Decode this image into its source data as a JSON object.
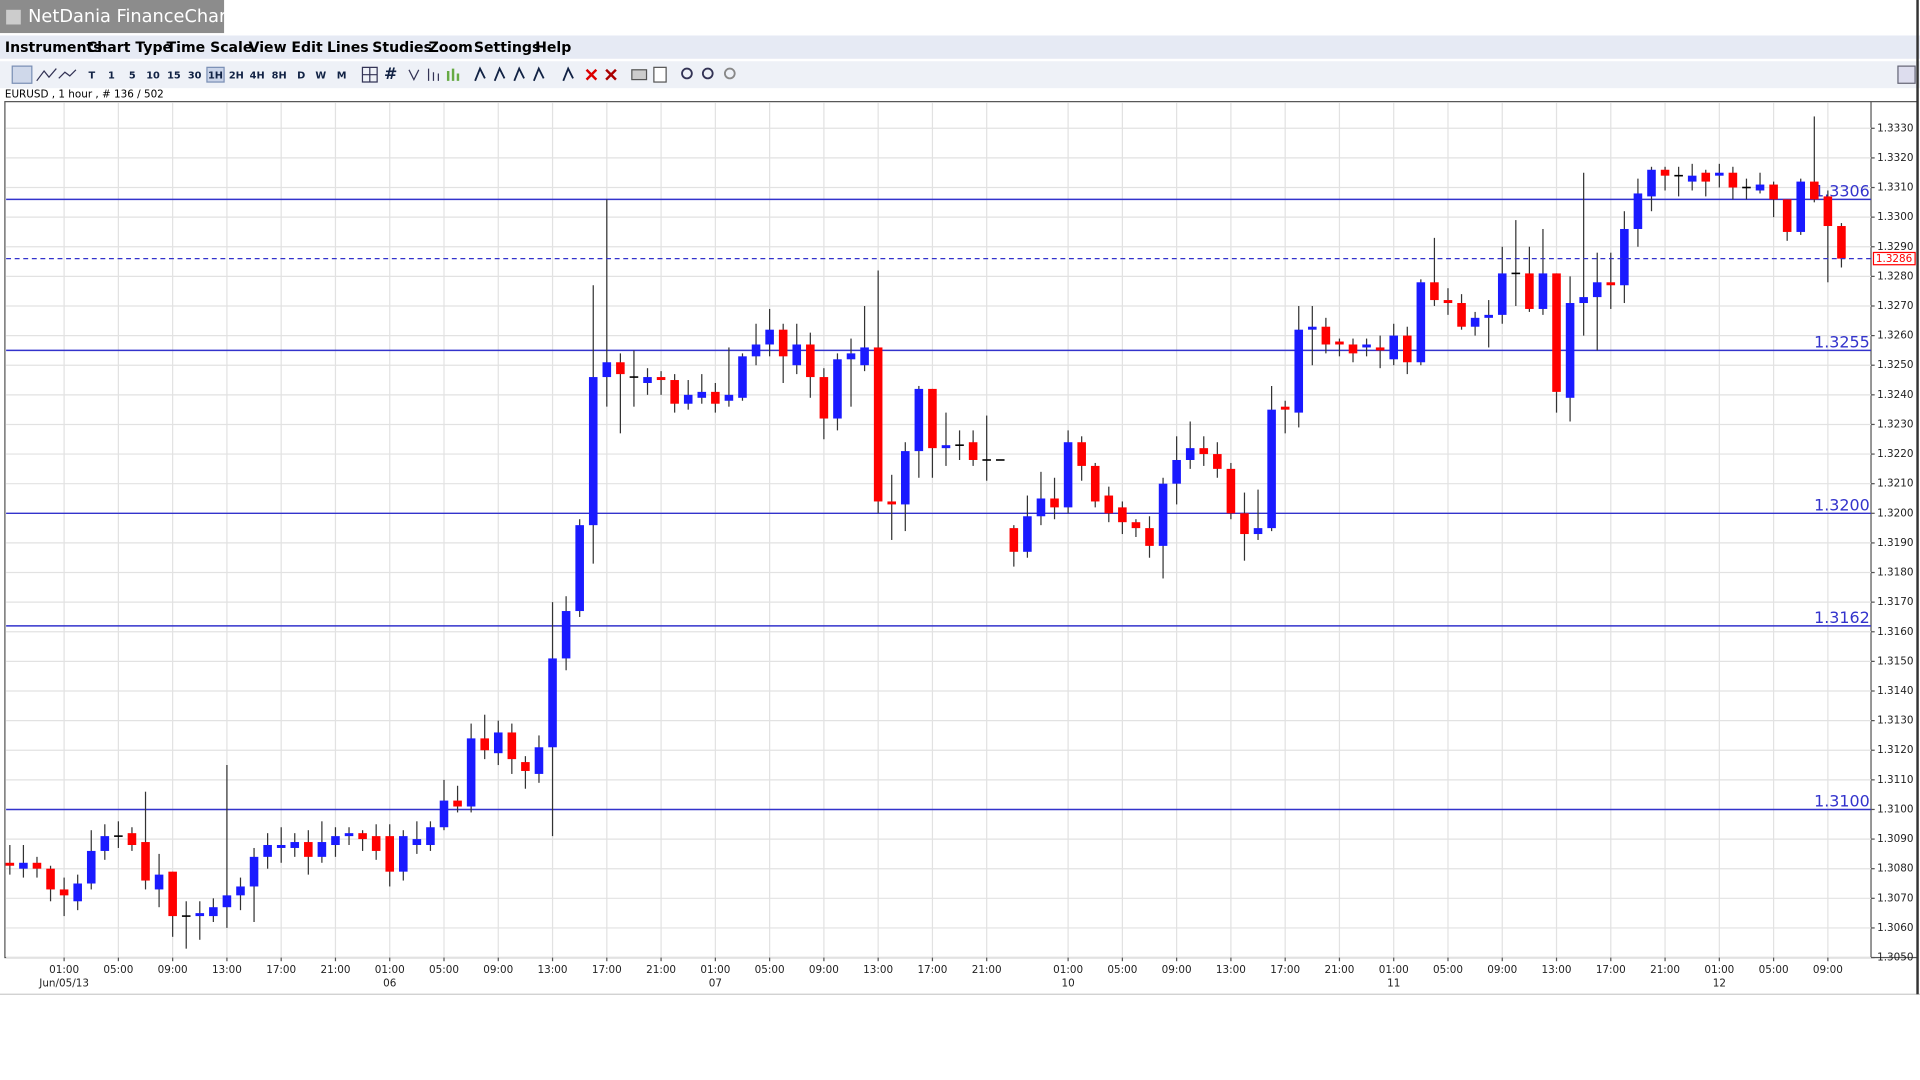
{
  "window_title": "NetDania FinanceChart",
  "menu": [
    "Instruments",
    "Chart Type",
    "Time Scale",
    "View",
    "Edit",
    "Lines",
    "Studies",
    "Zoom",
    "Settings",
    "Help"
  ],
  "toolbar": [
    "T",
    "1",
    "5",
    "10",
    "15",
    "30",
    "1H",
    "2H",
    "4H",
    "8H",
    "D",
    "W",
    "M"
  ],
  "instrument_info": "EURUSD , 1 hour , # 136 / 502",
  "chart_data": {
    "type": "candlestick",
    "up_color": "#1a1aff",
    "down_color": "#ff0000",
    "level_color": "#3333cc",
    "grid": true,
    "categories": [
      null,
      null,
      null,
      null,
      "01:00",
      null,
      null,
      null,
      "05:00",
      null,
      null,
      null,
      "09:00",
      null,
      null,
      null,
      "13:00",
      null,
      null,
      null,
      "17:00",
      null,
      null,
      null,
      "21:00",
      null,
      null,
      null,
      "01:00",
      null,
      null,
      null,
      "05:00",
      null,
      null,
      null,
      "09:00",
      null,
      null,
      null,
      "13:00",
      null,
      null,
      null,
      "17:00",
      null,
      null,
      null,
      "21:00",
      null,
      null,
      null,
      "01:00",
      null,
      null,
      null,
      "05:00",
      null,
      null,
      null,
      "09:00",
      null,
      null,
      null,
      "13:00",
      null,
      null,
      null,
      "17:00",
      null,
      null,
      null,
      "21:00",
      null,
      null,
      null,
      null,
      null,
      "01:00",
      null,
      null,
      null,
      "05:00",
      null,
      null,
      null,
      "09:00",
      null,
      null,
      null,
      "13:00",
      null,
      null,
      null,
      "17:00",
      null,
      null,
      null,
      "21:00",
      null,
      null,
      null,
      "01:00",
      null,
      null,
      null,
      "05:00",
      null,
      null,
      null,
      "09:00",
      null,
      null,
      null,
      "13:00",
      null,
      null,
      null,
      "17:00",
      null,
      null,
      null,
      "21:00",
      null,
      null,
      null,
      "01:00",
      null,
      null,
      null,
      "05:00",
      null,
      null,
      null,
      "09:00",
      null
    ],
    "dates": [
      null,
      null,
      null,
      null,
      "Jun/05/13",
      null,
      null,
      null,
      null,
      null,
      null,
      null,
      null,
      null,
      null,
      null,
      null,
      null,
      null,
      null,
      null,
      null,
      null,
      null,
      null,
      null,
      null,
      null,
      "06",
      null,
      null,
      null,
      null,
      null,
      null,
      null,
      null,
      null,
      null,
      null,
      null,
      null,
      null,
      null,
      null,
      null,
      null,
      null,
      null,
      null,
      null,
      null,
      "07",
      null,
      null,
      null,
      null,
      null,
      null,
      null,
      null,
      null,
      null,
      null,
      null,
      null,
      null,
      null,
      null,
      null,
      null,
      null,
      null,
      null,
      null,
      null,
      null,
      null,
      "10",
      null,
      null,
      null,
      null,
      null,
      null,
      null,
      null,
      null,
      null,
      null,
      null,
      null,
      null,
      null,
      null,
      null,
      null,
      null,
      null,
      null,
      null,
      null,
      "11",
      null,
      null,
      null,
      null,
      null,
      null,
      null,
      null,
      null,
      null,
      null,
      null,
      null,
      null,
      null,
      null,
      null,
      null,
      null,
      null,
      null,
      null,
      null,
      "12",
      null,
      null,
      null,
      null,
      null,
      null,
      null,
      null,
      null
    ],
    "open": [
      1.3082,
      1.308,
      1.3082,
      1.308,
      1.3073,
      1.3069,
      1.3075,
      1.3086,
      1.3091,
      1.3092,
      1.3089,
      1.3073,
      1.3079,
      1.3064,
      1.3064,
      1.3064,
      1.3067,
      1.3071,
      1.3074,
      1.3084,
      1.3087,
      1.3087,
      1.3089,
      1.3084,
      1.3088,
      1.3091,
      1.3092,
      1.3091,
      1.3091,
      1.3079,
      1.3088,
      1.3088,
      1.3094,
      1.3103,
      1.3101,
      1.3124,
      1.3119,
      1.3126,
      1.3116,
      1.3112,
      1.3121,
      1.3151,
      1.3167,
      1.3196,
      1.3246,
      1.3251,
      1.3246,
      1.3244,
      1.3246,
      1.3245,
      1.3237,
      1.3239,
      1.3241,
      1.3238,
      1.3239,
      1.3253,
      1.3257,
      1.3262,
      1.325,
      1.3257,
      1.3246,
      1.3232,
      1.3252,
      1.325,
      1.3256,
      1.3204,
      1.3203,
      1.3221,
      1.3242,
      1.3222,
      1.3223,
      1.3224,
      1.3218,
      1.3218,
      1.3195,
      1.3187,
      1.3199,
      1.3205,
      1.3202,
      1.3224,
      1.3216,
      1.3206,
      1.3202,
      1.3197,
      1.3195,
      1.3189,
      1.321,
      1.3218,
      1.3222,
      1.322,
      1.3215,
      1.32,
      1.3193,
      1.3195,
      1.3236,
      1.3234,
      1.3262,
      1.3263,
      1.3258,
      1.3257,
      1.3256,
      1.3256,
      1.3252,
      1.326,
      1.3251,
      1.3278,
      1.3272,
      1.3271,
      1.3263,
      1.3266,
      1.3267,
      1.3281,
      1.3281,
      1.3269,
      1.3281,
      1.3239,
      1.3271,
      1.3273,
      1.3278,
      1.3277,
      1.3296,
      1.3307,
      1.3316,
      1.3314,
      1.3312,
      1.3315,
      1.3314,
      1.3315,
      1.331,
      1.3309,
      1.3311,
      1.3306,
      1.3295,
      1.3312,
      1.3307,
      1.3297
    ],
    "high": [
      1.3088,
      1.3088,
      1.3084,
      1.3081,
      1.3077,
      1.3078,
      1.3093,
      1.3095,
      1.3096,
      1.3094,
      1.3106,
      1.3085,
      1.3079,
      1.3069,
      1.3069,
      1.307,
      1.3115,
      1.3077,
      1.3087,
      1.3092,
      1.3094,
      1.3092,
      1.3093,
      1.3096,
      1.3094,
      1.3094,
      1.3093,
      1.3095,
      1.3095,
      1.3093,
      1.3096,
      1.3096,
      1.311,
      1.3108,
      1.3129,
      1.3132,
      1.313,
      1.3129,
      1.3118,
      1.3125,
      1.317,
      1.3172,
      1.3198,
      1.3277,
      1.3306,
      1.3254,
      1.3255,
      1.3249,
      1.3248,
      1.3247,
      1.3245,
      1.3247,
      1.3244,
      1.3256,
      1.3254,
      1.3264,
      1.3269,
      1.3264,
      1.3264,
      1.3261,
      1.3249,
      1.3254,
      1.3259,
      1.327,
      1.3282,
      1.3213,
      1.3224,
      1.3243,
      1.3242,
      1.3234,
      1.3228,
      1.3228,
      1.3233,
      1.3218,
      1.3196,
      1.3206,
      1.3214,
      1.3212,
      1.3228,
      1.3226,
      1.3217,
      1.3209,
      1.3204,
      1.3198,
      1.3199,
      1.3212,
      1.3226,
      1.3231,
      1.3226,
      1.3224,
      1.3217,
      1.3207,
      1.3208,
      1.3243,
      1.3238,
      1.327,
      1.327,
      1.3266,
      1.3259,
      1.3259,
      1.3259,
      1.326,
      1.3264,
      1.3263,
      1.3279,
      1.3293,
      1.3276,
      1.3274,
      1.3268,
      1.3272,
      1.329,
      1.3299,
      1.329,
      1.3296,
      1.3281,
      1.328,
      1.3315,
      1.3288,
      1.3288,
      1.3302,
      1.3313,
      1.3317,
      1.3317,
      1.3317,
      1.3318,
      1.3316,
      1.3318,
      1.3317,
      1.3313,
      1.3315,
      1.3312,
      1.3306,
      1.3313,
      1.3334,
      1.3309,
      1.3298
    ],
    "low": [
      1.3078,
      1.3077,
      1.3077,
      1.3069,
      1.3064,
      1.3066,
      1.3073,
      1.3083,
      1.3087,
      1.3086,
      1.3073,
      1.3067,
      1.3057,
      1.3053,
      1.3056,
      1.3062,
      1.306,
      1.3066,
      1.3062,
      1.308,
      1.3082,
      1.3084,
      1.3078,
      1.3082,
      1.3084,
      1.3088,
      1.3086,
      1.3083,
      1.3074,
      1.3076,
      1.3085,
      1.3086,
      1.3093,
      1.3099,
      1.3099,
      1.3117,
      1.3115,
      1.3112,
      1.3107,
      1.3109,
      1.3091,
      1.3147,
      1.3165,
      1.3183,
      1.3236,
      1.3227,
      1.3236,
      1.324,
      1.324,
      1.3234,
      1.3235,
      1.3237,
      1.3234,
      1.3236,
      1.3238,
      1.325,
      1.3253,
      1.3244,
      1.3247,
      1.3239,
      1.3225,
      1.3228,
      1.3236,
      1.3248,
      1.32,
      1.3191,
      1.3194,
      1.3212,
      1.3212,
      1.3216,
      1.3218,
      1.3216,
      1.3211,
      1.3218,
      1.3182,
      1.3185,
      1.3196,
      1.3198,
      1.32,
      1.3211,
      1.3202,
      1.3197,
      1.3193,
      1.3192,
      1.3185,
      1.3178,
      1.3203,
      1.3215,
      1.3216,
      1.3212,
      1.3198,
      1.3184,
      1.3191,
      1.3194,
      1.3227,
      1.3229,
      1.325,
      1.3254,
      1.3253,
      1.3251,
      1.3253,
      1.3249,
      1.325,
      1.3247,
      1.325,
      1.327,
      1.3267,
      1.3262,
      1.326,
      1.3256,
      1.3264,
      1.327,
      1.3268,
      1.3267,
      1.3234,
      1.3231,
      1.326,
      1.3255,
      1.3269,
      1.3271,
      1.329,
      1.3302,
      1.3309,
      1.3307,
      1.3309,
      1.3307,
      1.331,
      1.3306,
      1.3306,
      1.3308,
      1.33,
      1.3292,
      1.3294,
      1.3305,
      1.3278,
      1.3283
    ],
    "close": [
      1.3081,
      1.3082,
      1.308,
      1.3073,
      1.3071,
      1.3075,
      1.3086,
      1.3091,
      1.3091,
      1.3088,
      1.3076,
      1.3078,
      1.3064,
      1.3064,
      1.3065,
      1.3067,
      1.3071,
      1.3074,
      1.3084,
      1.3088,
      1.3088,
      1.3089,
      1.3084,
      1.3089,
      1.3091,
      1.3092,
      1.309,
      1.3086,
      1.3079,
      1.3091,
      1.309,
      1.3094,
      1.3103,
      1.3101,
      1.3124,
      1.312,
      1.3126,
      1.3117,
      1.3113,
      1.3121,
      1.3151,
      1.3167,
      1.3196,
      1.3246,
      1.3251,
      1.3247,
      1.3246,
      1.3246,
      1.3245,
      1.3237,
      1.324,
      1.3241,
      1.3237,
      1.324,
      1.3253,
      1.3257,
      1.3262,
      1.3253,
      1.3257,
      1.3246,
      1.3232,
      1.3252,
      1.3254,
      1.3256,
      1.3204,
      1.3203,
      1.3221,
      1.3242,
      1.3222,
      1.3223,
      1.3223,
      1.3218,
      1.3218,
      1.3218,
      1.3187,
      1.3199,
      1.3205,
      1.3202,
      1.3224,
      1.3216,
      1.3204,
      1.32,
      1.3197,
      1.3195,
      1.3189,
      1.321,
      1.3218,
      1.3222,
      1.322,
      1.3215,
      1.32,
      1.3193,
      1.3195,
      1.3235,
      1.3235,
      1.3262,
      1.3263,
      1.3257,
      1.3257,
      1.3254,
      1.3257,
      1.3255,
      1.326,
      1.3251,
      1.3278,
      1.3272,
      1.3271,
      1.3263,
      1.3266,
      1.3267,
      1.3281,
      1.3281,
      1.3269,
      1.3281,
      1.3241,
      1.3271,
      1.3273,
      1.3278,
      1.3277,
      1.3296,
      1.3308,
      1.3316,
      1.3314,
      1.3314,
      1.3314,
      1.3312,
      1.3315,
      1.331,
      1.331,
      1.3311,
      1.3306,
      1.3295,
      1.3312,
      1.3306,
      1.3297,
      1.3286
    ],
    "ylim": [
      1.305,
      1.3339
    ],
    "yticks": [
      {
        "value": 1.305,
        "label": "1.3050"
      },
      {
        "value": 1.306,
        "label": "1.3060"
      },
      {
        "value": 1.307,
        "label": "1.3070"
      },
      {
        "value": 1.308,
        "label": "1.3080"
      },
      {
        "value": 1.309,
        "label": "1.3090"
      },
      {
        "value": 1.31,
        "label": "1.3100"
      },
      {
        "value": 1.311,
        "label": "1.3110"
      },
      {
        "value": 1.312,
        "label": "1.3120"
      },
      {
        "value": 1.313,
        "label": "1.3130"
      },
      {
        "value": 1.314,
        "label": "1.3140"
      },
      {
        "value": 1.315,
        "label": "1.3150"
      },
      {
        "value": 1.316,
        "label": "1.3160"
      },
      {
        "value": 1.317,
        "label": "1.3170"
      },
      {
        "value": 1.318,
        "label": "1.3180"
      },
      {
        "value": 1.319,
        "label": "1.3190"
      },
      {
        "value": 1.32,
        "label": "1.3200"
      },
      {
        "value": 1.321,
        "label": "1.3210"
      },
      {
        "value": 1.322,
        "label": "1.3220"
      },
      {
        "value": 1.323,
        "label": "1.3230"
      },
      {
        "value": 1.324,
        "label": "1.3240"
      },
      {
        "value": 1.325,
        "label": "1.3250"
      },
      {
        "value": 1.326,
        "label": "1.3260"
      },
      {
        "value": 1.327,
        "label": "1.3270"
      },
      {
        "value": 1.328,
        "label": "1.3280"
      },
      {
        "value": 1.329,
        "label": "1.3290"
      },
      {
        "value": 1.33,
        "label": "1.3300"
      },
      {
        "value": 1.331,
        "label": "1.3310"
      },
      {
        "value": 1.332,
        "label": "1.3320"
      },
      {
        "value": 1.333,
        "label": "1.3330"
      }
    ],
    "levels": [
      1.3306,
      1.3255,
      {
        "value": 1.32,
        "label": "1.3200"
      },
      1.3162,
      {
        "value": 1.31,
        "label": "1.3100"
      }
    ],
    "last_price": 1.3286
  }
}
